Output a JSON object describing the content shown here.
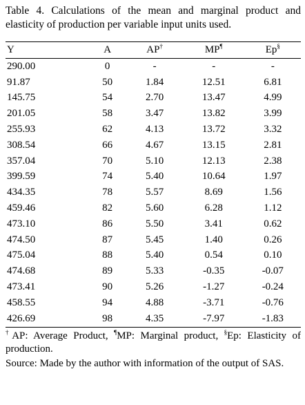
{
  "table": {
    "caption": "Table 4. Calculations of the mean and marginal product and elasticity of production per variable input units used.",
    "headers": [
      {
        "text": "Y"
      },
      {
        "text": "A"
      },
      {
        "text": "AP",
        "sup": "†"
      },
      {
        "text": "MP",
        "sup": "¶"
      },
      {
        "text": "Ep",
        "sup": "§"
      }
    ],
    "rows": [
      [
        "290.00",
        "0",
        "-",
        "-",
        "-"
      ],
      [
        "91.87",
        "50",
        "1.84",
        "12.51",
        "6.81"
      ],
      [
        "145.75",
        "54",
        "2.70",
        "13.47",
        "4.99"
      ],
      [
        "201.05",
        "58",
        "3.47",
        "13.82",
        "3.99"
      ],
      [
        "255.93",
        "62",
        "4.13",
        "13.72",
        "3.32"
      ],
      [
        "308.54",
        "66",
        "4.67",
        "13.15",
        "2.81"
      ],
      [
        "357.04",
        "70",
        "5.10",
        "12.13",
        "2.38"
      ],
      [
        "399.59",
        "74",
        "5.40",
        "10.64",
        "1.97"
      ],
      [
        "434.35",
        "78",
        "5.57",
        "8.69",
        "1.56"
      ],
      [
        "459.46",
        "82",
        "5.60",
        "6.28",
        "1.12"
      ],
      [
        "473.10",
        "86",
        "5.50",
        "3.41",
        "0.62"
      ],
      [
        "474.50",
        "87",
        "5.45",
        "1.40",
        "0.26"
      ],
      [
        "475.04",
        "88",
        "5.40",
        "0.54",
        "0.10"
      ],
      [
        "474.68",
        "89",
        "5.33",
        "-0.35",
        "-0.07"
      ],
      [
        "473.41",
        "90",
        "5.26",
        "-1.27",
        "-0.24"
      ],
      [
        "458.55",
        "94",
        "4.88",
        "-3.71",
        "-0.76"
      ],
      [
        "426.69",
        "98",
        "4.35",
        "-7.97",
        "-1.83"
      ]
    ],
    "footnotes": [
      {
        "sup": "†",
        "text": "AP: Average Product, "
      },
      {
        "sup": "¶",
        "text": "MP: Marginal product, "
      },
      {
        "sup": "§",
        "text": "Ep: Elasticity of production."
      }
    ],
    "source": "Source: Made by the author with information of the output of SAS."
  }
}
